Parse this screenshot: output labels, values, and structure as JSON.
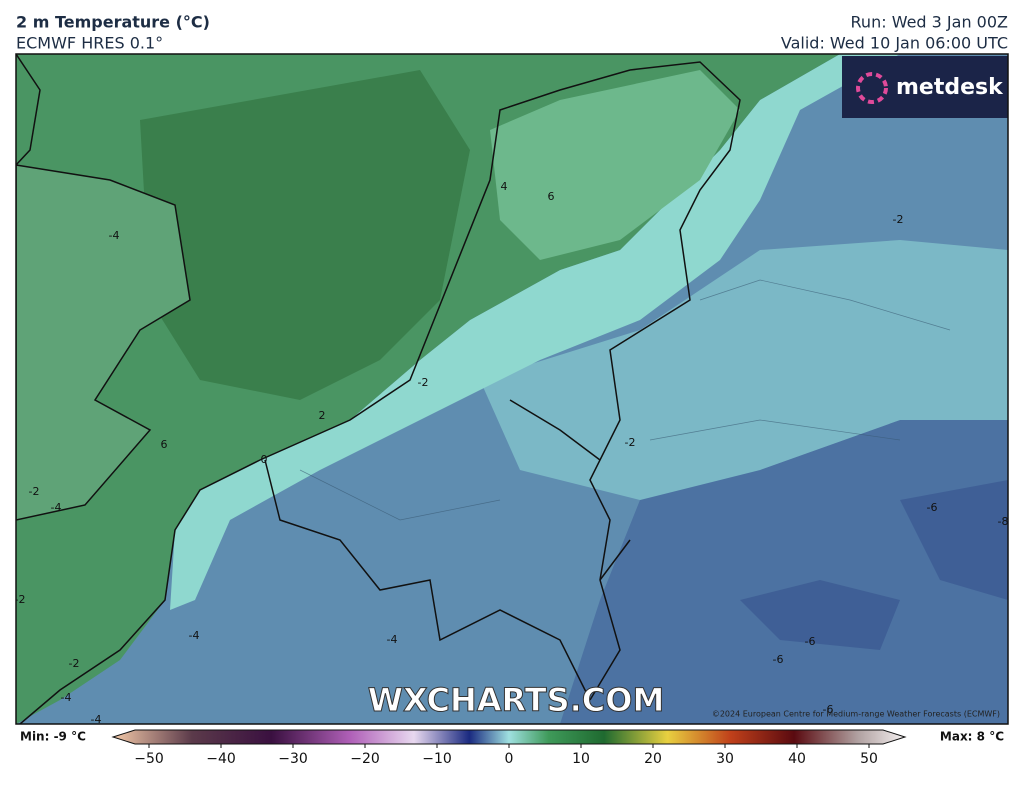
{
  "header": {
    "title": "2 m Temperature (°C)",
    "subtitle": "ECMWF HRES 0.1°",
    "run": "Run: Wed 3 Jan 00Z",
    "valid": "Valid: Wed 10 Jan 06:00 UTC"
  },
  "logo": "metdesk",
  "watermark": "WXCHARTS.COM",
  "copyright": "©2024 European Centre for Medium-range Weather Forecasts (ECMWF)",
  "contour_labels": [
    -4,
    4,
    6,
    -2,
    -2,
    2,
    6,
    -2,
    -4,
    -4,
    -2,
    -2,
    -4,
    -4,
    -6,
    -8,
    -6,
    -6,
    -6,
    -4,
    0,
    -2
  ],
  "colorbar": {
    "min_label": "Min: -9 °C",
    "max_label": "Max: 8 °C",
    "range": [
      -55,
      55
    ],
    "ticks": [
      {
        "value": -50,
        "label": "−50"
      },
      {
        "value": -40,
        "label": "−40"
      },
      {
        "value": -30,
        "label": "−30"
      },
      {
        "value": -20,
        "label": "−20"
      },
      {
        "value": -10,
        "label": "−10"
      },
      0,
      10,
      20,
      30,
      40,
      50
    ]
  }
}
